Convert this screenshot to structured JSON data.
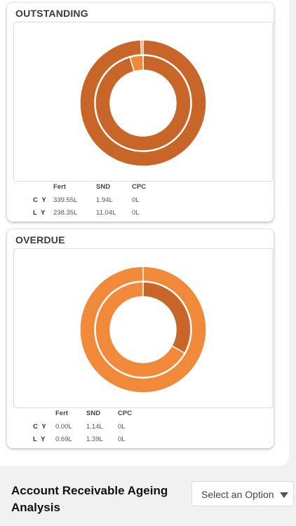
{
  "outstanding": {
    "title": "OUTSTANDING",
    "columns": [
      "Fert",
      "SND",
      "CPC"
    ],
    "rows": [
      {
        "label": "C Y",
        "values": [
          "339.55L",
          "1.94L",
          "0L"
        ]
      },
      {
        "label": "L Y",
        "values": [
          "238.35L",
          "11.04L",
          "0L"
        ]
      }
    ],
    "chart_data": {
      "type": "pie",
      "categories": [
        "Fert",
        "SND",
        "CPC"
      ],
      "series": [
        {
          "values": [
            339.55,
            1.94,
            0
          ]
        },
        {
          "values": [
            238.35,
            11.04,
            0
          ]
        }
      ],
      "colors": [
        "#c8662a",
        "#f08a3a",
        "#f6b27a"
      ]
    }
  },
  "overdue": {
    "title": "OVERDUE",
    "columns": [
      "Fert",
      "SND",
      "CPC"
    ],
    "rows": [
      {
        "label": "C Y",
        "values": [
          "0.00L",
          "1.14L",
          "0L"
        ]
      },
      {
        "label": "L Y",
        "values": [
          "0.69L",
          "1.39L",
          "0L"
        ]
      }
    ],
    "chart_data": {
      "type": "pie",
      "categories": [
        "Fert",
        "SND",
        "CPC"
      ],
      "series": [
        {
          "values": [
            0.0,
            1.14,
            0
          ]
        },
        {
          "values": [
            0.69,
            1.39,
            0
          ]
        }
      ],
      "colors": [
        "#c8662a",
        "#f08a3a",
        "#f6b27a"
      ]
    }
  },
  "ageing": {
    "title": "Account Receivable Ageing Analysis",
    "select_label": "Select an Option"
  }
}
